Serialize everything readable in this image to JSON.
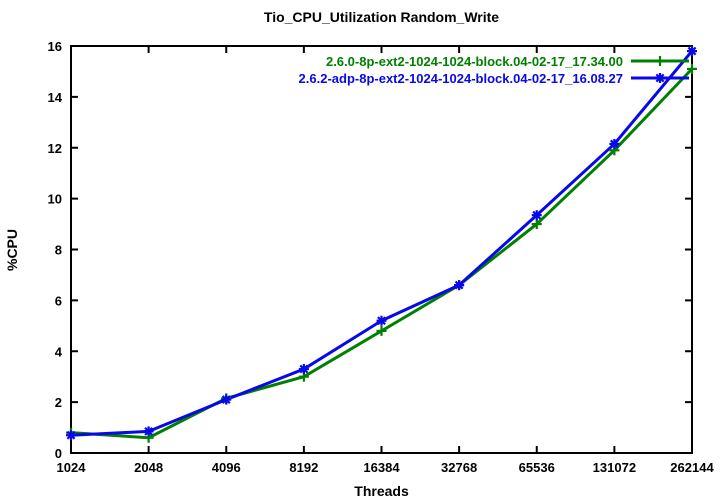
{
  "title": "Tio_CPU_Utilization Random_Write",
  "colors": {
    "series1": "#008000",
    "series2": "#0808e8",
    "axis": "#000000",
    "background": "#ffffff"
  },
  "chart_data": {
    "type": "line",
    "title": "Tio_CPU_Utilization Random_Write",
    "xlabel": "Threads",
    "ylabel": "%CPU",
    "x_scale": "log2",
    "categories": [
      "1024",
      "2048",
      "4096",
      "8192",
      "16384",
      "32768",
      "65536",
      "131072",
      "262144"
    ],
    "ylim": [
      0,
      16
    ],
    "ytick_step": 2,
    "grid": false,
    "legend_position": "top-right-inside",
    "series": [
      {
        "name": "2.6.0-8p-ext2-1024-1024-block.04-02-17_17.34.00",
        "color": "#008000",
        "marker": "plus",
        "values": [
          0.8,
          0.6,
          2.15,
          3.0,
          4.8,
          6.6,
          9.0,
          11.9,
          15.1
        ]
      },
      {
        "name": "2.6.2-adp-8p-ext2-1024-1024-block.04-02-17_16.08.27",
        "color": "#0808e8",
        "marker": "asterisk",
        "values": [
          0.7,
          0.85,
          2.1,
          3.3,
          5.2,
          6.6,
          9.35,
          12.15,
          15.8
        ]
      }
    ]
  }
}
